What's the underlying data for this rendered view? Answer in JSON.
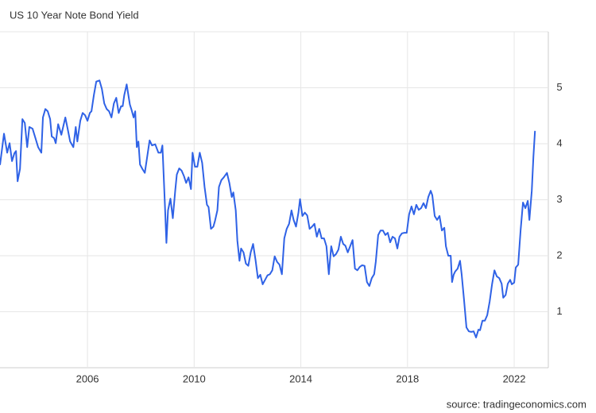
{
  "chart_data": {
    "type": "line",
    "title": "US 10 Year Note Bond Yield",
    "source": "source: tradingeconomics.com",
    "color": "#2f62e6",
    "grid": true,
    "xlim": [
      2002.72,
      2023.28
    ],
    "xticks": [
      2006,
      2010,
      2014,
      2018,
      2022
    ],
    "ylim": [
      0,
      6
    ],
    "yticks": [
      1,
      2,
      3,
      4,
      5
    ],
    "x": [
      2002.72,
      2002.87,
      2002.99,
      2003.08,
      2003.17,
      2003.26,
      2003.32,
      2003.38,
      2003.47,
      2003.56,
      2003.65,
      2003.74,
      2003.82,
      2003.94,
      2004.03,
      2004.15,
      2004.27,
      2004.33,
      2004.42,
      2004.51,
      2004.6,
      2004.66,
      2004.75,
      2004.81,
      2004.9,
      2005.02,
      2005.17,
      2005.26,
      2005.35,
      2005.47,
      2005.56,
      2005.62,
      2005.73,
      2005.82,
      2005.91,
      2006.0,
      2006.09,
      2006.15,
      2006.24,
      2006.33,
      2006.45,
      2006.54,
      2006.63,
      2006.72,
      2006.81,
      2006.9,
      2006.99,
      2007.08,
      2007.17,
      2007.26,
      2007.32,
      2007.38,
      2007.47,
      2007.59,
      2007.65,
      2007.73,
      2007.79,
      2007.85,
      2007.91,
      2007.97,
      2008.06,
      2008.15,
      2008.24,
      2008.33,
      2008.42,
      2008.54,
      2008.66,
      2008.75,
      2008.81,
      2008.9,
      2008.96,
      2009.02,
      2009.11,
      2009.2,
      2009.29,
      2009.35,
      2009.44,
      2009.53,
      2009.62,
      2009.7,
      2009.79,
      2009.88,
      2009.94,
      2010.03,
      2010.12,
      2010.21,
      2010.3,
      2010.39,
      2010.48,
      2010.54,
      2010.63,
      2010.72,
      2010.78,
      2010.87,
      2010.93,
      2011.02,
      2011.11,
      2011.23,
      2011.32,
      2011.41,
      2011.47,
      2011.56,
      2011.62,
      2011.7,
      2011.76,
      2011.85,
      2011.94,
      2012.03,
      2012.12,
      2012.21,
      2012.3,
      2012.39,
      2012.48,
      2012.57,
      2012.66,
      2012.75,
      2012.84,
      2012.93,
      2013.02,
      2013.11,
      2013.2,
      2013.29,
      2013.38,
      2013.47,
      2013.56,
      2013.65,
      2013.73,
      2013.82,
      2013.91,
      2013.97,
      2014.06,
      2014.15,
      2014.24,
      2014.33,
      2014.42,
      2014.51,
      2014.6,
      2014.69,
      2014.78,
      2014.87,
      2014.96,
      2015.05,
      2015.14,
      2015.23,
      2015.32,
      2015.41,
      2015.5,
      2015.59,
      2015.67,
      2015.76,
      2015.85,
      2015.94,
      2016.03,
      2016.12,
      2016.21,
      2016.3,
      2016.39,
      2016.48,
      2016.57,
      2016.66,
      2016.75,
      2016.81,
      2016.9,
      2016.99,
      2017.08,
      2017.17,
      2017.26,
      2017.35,
      2017.44,
      2017.53,
      2017.62,
      2017.7,
      2017.79,
      2017.88,
      2017.97,
      2018.06,
      2018.15,
      2018.24,
      2018.33,
      2018.42,
      2018.51,
      2018.6,
      2018.69,
      2018.78,
      2018.87,
      2018.93,
      2019.02,
      2019.11,
      2019.2,
      2019.29,
      2019.38,
      2019.44,
      2019.53,
      2019.62,
      2019.67,
      2019.73,
      2019.79,
      2019.88,
      2019.97,
      2020.03,
      2020.12,
      2020.21,
      2020.3,
      2020.39,
      2020.48,
      2020.57,
      2020.66,
      2020.72,
      2020.81,
      2020.9,
      2020.99,
      2021.08,
      2021.17,
      2021.26,
      2021.35,
      2021.44,
      2021.53,
      2021.59,
      2021.68,
      2021.76,
      2021.85,
      2021.91,
      2022.0,
      2022.06,
      2022.15,
      2022.24,
      2022.33,
      2022.42,
      2022.51,
      2022.57,
      2022.66,
      2022.72,
      2022.78
    ],
    "values": [
      3.62,
      4.18,
      3.84,
      4.01,
      3.69,
      3.83,
      3.87,
      3.33,
      3.55,
      4.44,
      4.37,
      3.94,
      4.3,
      4.27,
      4.13,
      3.94,
      3.84,
      4.47,
      4.62,
      4.58,
      4.44,
      4.13,
      4.1,
      4.01,
      4.35,
      4.16,
      4.47,
      4.26,
      4.04,
      3.94,
      4.3,
      4.04,
      4.41,
      4.55,
      4.51,
      4.41,
      4.55,
      4.58,
      4.87,
      5.11,
      5.13,
      4.98,
      4.72,
      4.62,
      4.58,
      4.47,
      4.72,
      4.82,
      4.55,
      4.67,
      4.67,
      4.87,
      5.06,
      4.7,
      4.61,
      4.47,
      4.58,
      3.94,
      4.04,
      3.63,
      3.55,
      3.48,
      3.77,
      4.06,
      3.97,
      3.99,
      3.84,
      3.84,
      3.97,
      2.95,
      2.23,
      2.81,
      3.02,
      2.67,
      3.16,
      3.45,
      3.56,
      3.52,
      3.42,
      3.3,
      3.4,
      3.19,
      3.84,
      3.59,
      3.59,
      3.84,
      3.66,
      3.23,
      2.91,
      2.87,
      2.48,
      2.52,
      2.62,
      2.81,
      3.23,
      3.35,
      3.4,
      3.48,
      3.3,
      3.05,
      3.13,
      2.81,
      2.27,
      1.91,
      2.13,
      2.06,
      1.86,
      1.82,
      2.06,
      2.21,
      1.93,
      1.6,
      1.66,
      1.49,
      1.57,
      1.65,
      1.67,
      1.74,
      1.99,
      1.89,
      1.84,
      1.67,
      2.31,
      2.48,
      2.57,
      2.81,
      2.64,
      2.52,
      2.77,
      3.01,
      2.71,
      2.77,
      2.72,
      2.48,
      2.52,
      2.57,
      2.34,
      2.48,
      2.31,
      2.31,
      2.17,
      1.67,
      2.17,
      1.99,
      2.03,
      2.11,
      2.34,
      2.21,
      2.18,
      2.06,
      2.17,
      2.28,
      1.77,
      1.74,
      1.8,
      1.83,
      1.82,
      1.53,
      1.46,
      1.6,
      1.67,
      1.89,
      2.37,
      2.45,
      2.45,
      2.37,
      2.41,
      2.24,
      2.34,
      2.31,
      2.13,
      2.34,
      2.4,
      2.41,
      2.41,
      2.74,
      2.88,
      2.74,
      2.91,
      2.82,
      2.85,
      2.94,
      2.85,
      3.05,
      3.16,
      3.08,
      2.71,
      2.64,
      2.71,
      2.45,
      2.5,
      2.17,
      2.0,
      2.0,
      1.53,
      1.66,
      1.72,
      1.77,
      1.91,
      1.67,
      1.21,
      0.72,
      0.65,
      0.64,
      0.65,
      0.54,
      0.68,
      0.67,
      0.84,
      0.84,
      0.94,
      1.18,
      1.49,
      1.74,
      1.63,
      1.6,
      1.5,
      1.25,
      1.3,
      1.5,
      1.57,
      1.49,
      1.52,
      1.79,
      1.84,
      2.45,
      2.95,
      2.85,
      2.98,
      2.64,
      3.16,
      3.76,
      4.23
    ]
  }
}
